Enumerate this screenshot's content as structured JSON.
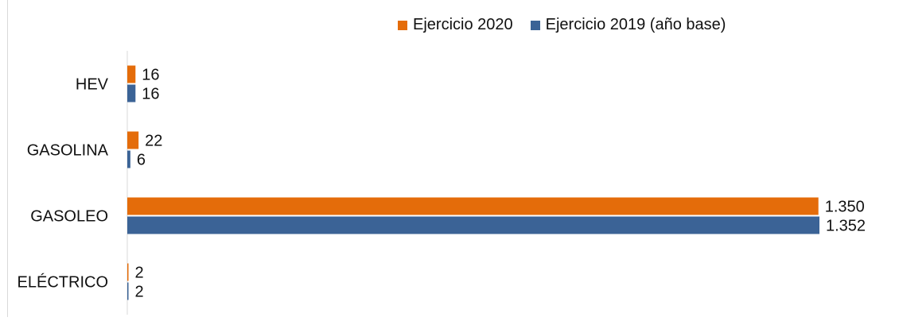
{
  "chart_data": {
    "type": "bar",
    "orientation": "horizontal",
    "categories": [
      "HEV",
      "GASOLINA",
      "GASOLEO",
      "ELÉCTRICO"
    ],
    "series": [
      {
        "name": "Ejercicio 2020",
        "values": [
          16,
          22,
          1350,
          2
        ],
        "labels": [
          "16",
          "22",
          "1.350",
          "2"
        ],
        "color": "#E46C0A"
      },
      {
        "name": "Ejercicio 2019 (año base)",
        "values": [
          16,
          6,
          1352,
          2
        ],
        "labels": [
          "16",
          "6",
          "1.352",
          "2"
        ],
        "color": "#3B6396"
      }
    ],
    "xlim": [
      0,
      1352
    ],
    "grid": false,
    "legend_position": "top-right",
    "title": "",
    "xlabel": "",
    "ylabel": ""
  }
}
